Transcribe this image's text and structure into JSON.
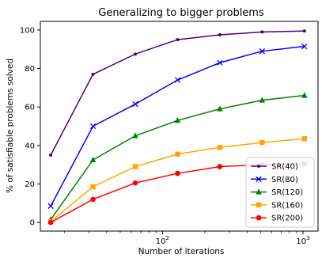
{
  "chart_data": {
    "type": "line",
    "title": "Generalizing to bigger problems",
    "xlabel": "Number of iterations",
    "ylabel": "% of satisfiable problems solved",
    "x_scale": "log",
    "xlim": [
      13.5,
      1280
    ],
    "ylim": [
      -4.5,
      104.5
    ],
    "x_ticks": [
      {
        "value": 100,
        "base": "10",
        "exp": "2"
      },
      {
        "value": 1000,
        "base": "10",
        "exp": "3"
      }
    ],
    "x_minor_ticks": [
      20,
      30,
      40,
      50,
      60,
      70,
      80,
      90,
      200,
      300,
      400,
      500,
      600,
      700,
      800,
      900
    ],
    "y_ticks": [
      0,
      20,
      40,
      60,
      80,
      100
    ],
    "grid": false,
    "legend_position": "lower-right",
    "x": [
      16,
      32,
      64,
      128,
      256,
      512,
      1024
    ],
    "series": [
      {
        "name": "SR(40)",
        "color": "#4b0082",
        "marker": "dot",
        "values": [
          35,
          77,
          87.5,
          95,
          97.5,
          99,
          99.5
        ]
      },
      {
        "name": "SR(80)",
        "color": "#0000ff",
        "marker": "x",
        "values": [
          8.5,
          50,
          61.5,
          74,
          83,
          89,
          91.5
        ]
      },
      {
        "name": "SR(120)",
        "color": "#008000",
        "marker": "triangle",
        "values": [
          1.5,
          32.5,
          45,
          53,
          59,
          63.5,
          66
        ]
      },
      {
        "name": "SR(160)",
        "color": "#ffa500",
        "marker": "square",
        "values": [
          0.5,
          18.5,
          29,
          35.5,
          39,
          41.5,
          43.5
        ]
      },
      {
        "name": "SR(200)",
        "color": "#ff0000",
        "marker": "circle",
        "values": [
          0,
          12,
          20.5,
          25.5,
          29,
          30,
          30.5
        ]
      }
    ]
  }
}
